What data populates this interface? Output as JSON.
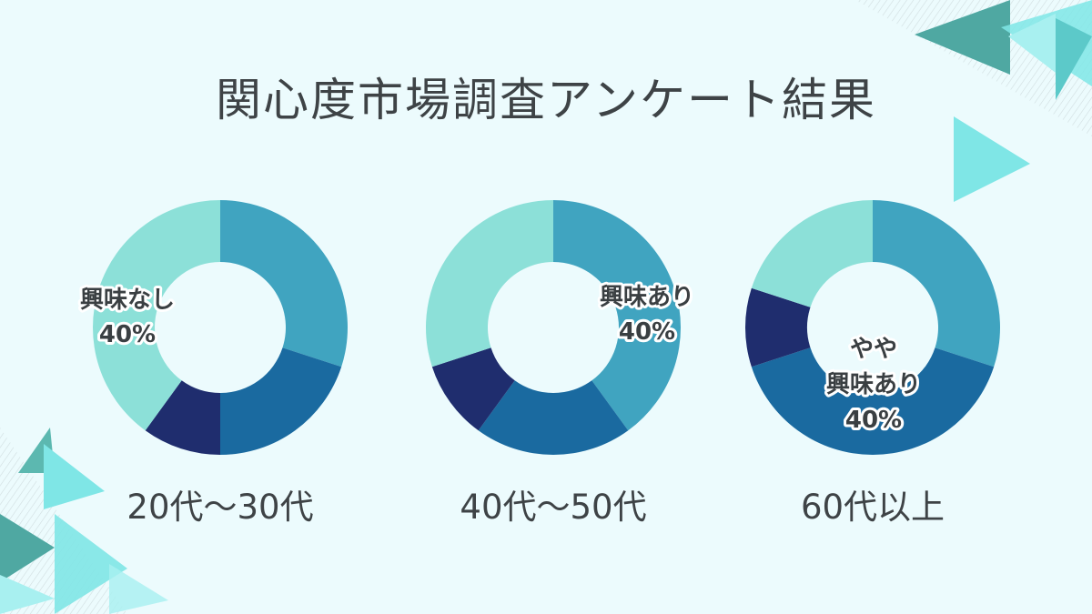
{
  "title": "関心度市場調査アンケート結果",
  "colors": {
    "background": "#ecfbfd",
    "interested": "#40a4c0",
    "somewhat_interested": "#1a6aa0",
    "somewhat_not": "#1f2d6e",
    "not_interested": "#8ce0d8",
    "decoration_teal": "#5cb8b0",
    "decoration_cyan": "#7fe6e6"
  },
  "chart_data": [
    {
      "type": "pie",
      "variant": "donut",
      "caption": "20代〜30代",
      "values": [
        30,
        20,
        10,
        40
      ],
      "unit": "%",
      "callout": {
        "slice": 3,
        "lines": [
          "興味なし",
          "40%"
        ]
      }
    },
    {
      "type": "pie",
      "variant": "donut",
      "caption": "40代〜50代",
      "values": [
        40,
        20,
        10,
        30
      ],
      "unit": "%",
      "callout": {
        "slice": 0,
        "lines": [
          "興味あり",
          "40%"
        ]
      }
    },
    {
      "type": "pie",
      "variant": "donut",
      "caption": "60代以上",
      "values": [
        30,
        40,
        10,
        20
      ],
      "unit": "%",
      "callout": {
        "slice": 1,
        "lines": [
          "やや",
          "興味あり",
          "40%"
        ]
      }
    }
  ]
}
